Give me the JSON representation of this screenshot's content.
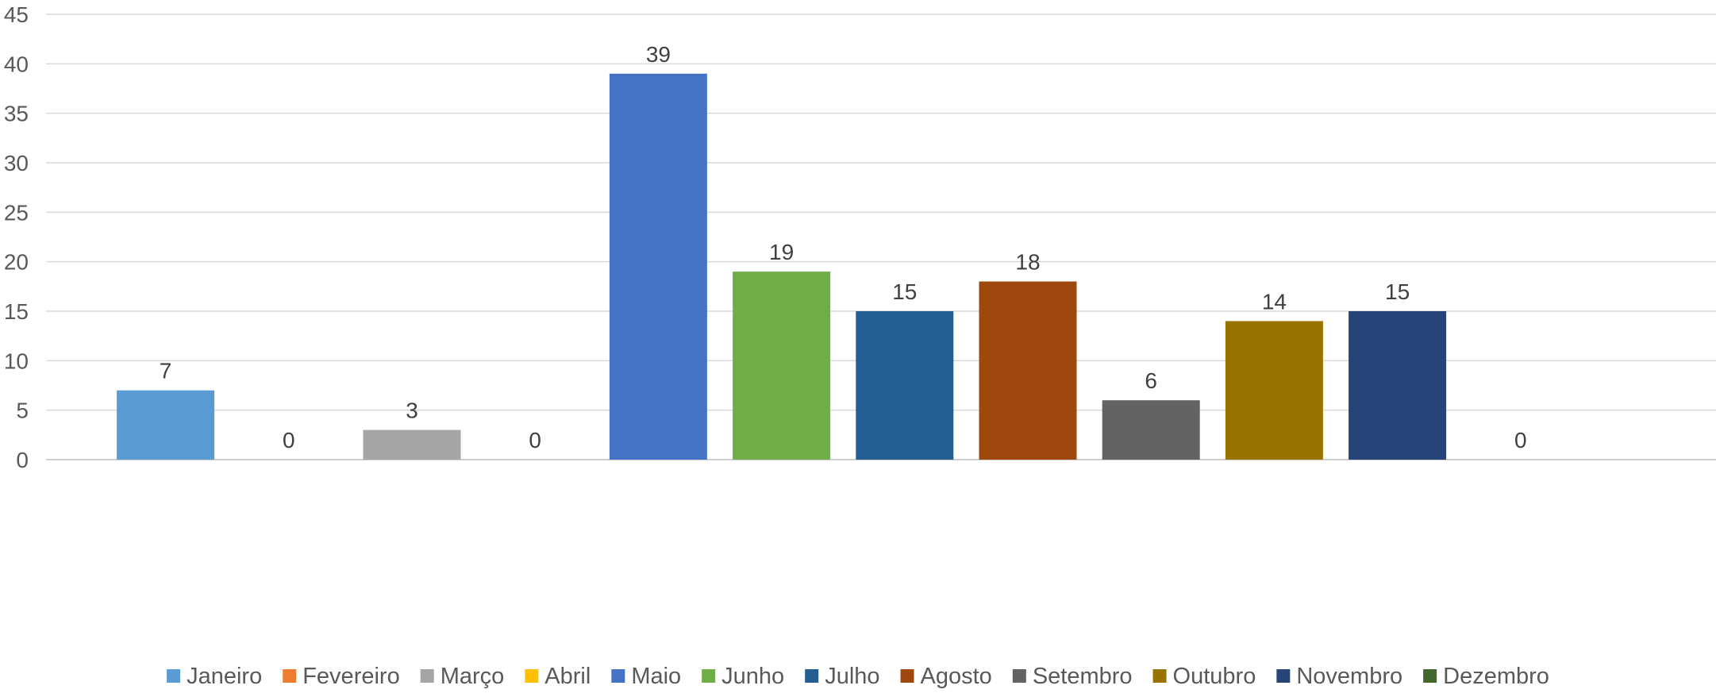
{
  "chart_data": {
    "type": "bar",
    "categories": [
      "Janeiro",
      "Fevereiro",
      "Março",
      "Abril",
      "Maio",
      "Junho",
      "Julho",
      "Agosto",
      "Setembro",
      "Outubro",
      "Novembro",
      "Dezembro"
    ],
    "values": [
      7,
      0,
      3,
      0,
      39,
      19,
      15,
      18,
      6,
      14,
      15,
      0
    ],
    "colors": [
      "#5B9BD5",
      "#ED7D31",
      "#A5A5A5",
      "#FFC000",
      "#4472C4",
      "#70AD47",
      "#255E91",
      "#9E480E",
      "#636363",
      "#997300",
      "#264478",
      "#43682B"
    ],
    "ylim": [
      0,
      45
    ],
    "yticks": [
      0,
      5,
      10,
      15,
      20,
      25,
      30,
      35,
      40,
      45
    ],
    "grid": true,
    "legend_position": "bottom",
    "data_labels": true,
    "title": "",
    "xlabel": "",
    "ylabel": ""
  }
}
